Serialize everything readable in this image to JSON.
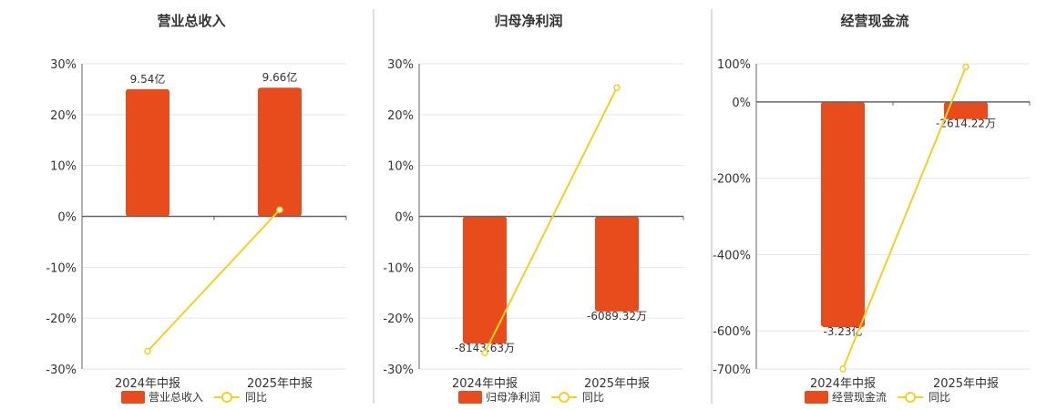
{
  "colors": {
    "bar": "#E84C1C",
    "line": "#F2D024",
    "grid": "#E6E6E6",
    "axis": "#666666",
    "divider": "#BBBBBB"
  },
  "chart_data": [
    {
      "type": "bar",
      "title": "营业总收入",
      "categories": [
        "2024年中报",
        "2025年中报"
      ],
      "yticks": [
        30,
        20,
        10,
        0,
        -10,
        -20,
        -30
      ],
      "ytick_labels": [
        "30%",
        "20%",
        "10%",
        "0%",
        "-10%",
        "-20%",
        "-30%"
      ],
      "ylim": [
        -30,
        30
      ],
      "bar_values": [
        25,
        25.3
      ],
      "bar_labels": [
        "9.54亿",
        "9.66亿"
      ],
      "line_values": [
        -26.5,
        1.3
      ],
      "legend": {
        "bar": "营业总收入",
        "line": "同比"
      }
    },
    {
      "type": "bar",
      "title": "归母净利润",
      "categories": [
        "2024年中报",
        "2025年中报"
      ],
      "yticks": [
        30,
        20,
        10,
        0,
        -10,
        -20,
        -30
      ],
      "ytick_labels": [
        "30%",
        "20%",
        "10%",
        "0%",
        "-10%",
        "-20%",
        "-30%"
      ],
      "ylim": [
        -30,
        30
      ],
      "bar_values": [
        -25,
        -18.7
      ],
      "bar_labels": [
        "-8143.63万",
        "-6089.32万"
      ],
      "line_values": [
        -26.8,
        25.3
      ],
      "legend": {
        "bar": "归母净利润",
        "line": "同比"
      }
    },
    {
      "type": "bar",
      "title": "经营现金流",
      "categories": [
        "2024年中报",
        "2025年中报"
      ],
      "yticks": [
        100,
        0,
        -200,
        -400,
        -600,
        -700
      ],
      "ytick_labels": [
        "100%",
        "0%",
        "-200%",
        "-400%",
        "-600%",
        "-700%"
      ],
      "ylim": [
        -700,
        100
      ],
      "bar_values": [
        -590,
        -45
      ],
      "bar_labels": [
        "-3.23亿",
        "-2614.22万"
      ],
      "line_values": [
        -700,
        92
      ],
      "legend": {
        "bar": "经营现金流",
        "line": "同比"
      }
    }
  ]
}
